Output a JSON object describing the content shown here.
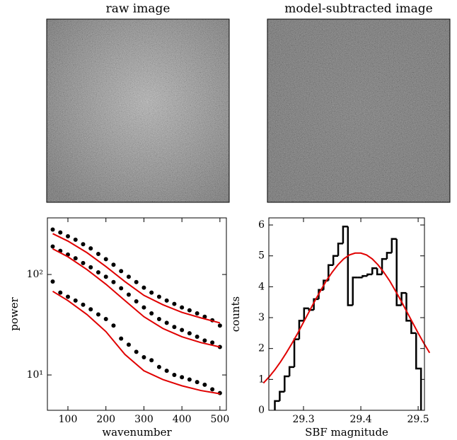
{
  "chart_data": [
    {
      "type": "image",
      "title": "raw image"
    },
    {
      "type": "image",
      "title": "model-subtracted image"
    },
    {
      "type": "scatter",
      "xlabel": "wavenumber",
      "ylabel": "power",
      "yscale": "log",
      "xlim": [
        46,
        517
      ],
      "ylim": [
        4.45,
        366
      ],
      "xticks": [
        100,
        200,
        300,
        400,
        500
      ],
      "yticks": [
        {
          "value": 10,
          "label": "10¹"
        },
        {
          "value": 100,
          "label": "10²"
        }
      ],
      "x": [
        60,
        80,
        100,
        120,
        140,
        160,
        180,
        200,
        220,
        240,
        260,
        280,
        300,
        320,
        340,
        360,
        380,
        400,
        420,
        440,
        460,
        480,
        500
      ],
      "series": [
        {
          "color": "#000000",
          "values": [
            280,
            262,
            240,
            222,
            200,
            182,
            160,
            142,
            125,
            108,
            95,
            84,
            74,
            66,
            60,
            55,
            51,
            47,
            44,
            41,
            38,
            35,
            31
          ]
        },
        {
          "color": "#000000",
          "values": [
            190,
            172,
            158,
            145,
            130,
            118,
            105,
            95,
            84,
            73,
            63,
            54,
            47,
            41,
            36,
            33,
            30,
            28,
            26,
            24,
            22,
            21,
            19
          ]
        },
        {
          "color": "#000000",
          "values": [
            85,
            66,
            60,
            55,
            50,
            45,
            40,
            36,
            31,
            23,
            20,
            17,
            15,
            14,
            12,
            11,
            10,
            9.5,
            9,
            8.5,
            8,
            7.2,
            6.6
          ]
        }
      ],
      "fits": {
        "color": "#e00000",
        "x": [
          60,
          100,
          150,
          200,
          250,
          300,
          350,
          400,
          450,
          500
        ],
        "series": [
          [
            255,
            215,
            165,
            120,
            85,
            62,
            50,
            42,
            37,
            33
          ],
          [
            180,
            150,
            112,
            80,
            55,
            38,
            29,
            24,
            21,
            19
          ],
          [
            68,
            55,
            40,
            27,
            16,
            11,
            9,
            7.8,
            7,
            6.5
          ]
        ]
      }
    },
    {
      "type": "histogram",
      "xlabel": "SBF magnitude",
      "ylabel": "counts",
      "xlim": [
        29.2395,
        29.511
      ],
      "ylim": [
        0,
        6.23
      ],
      "xticks": [
        29.3,
        29.4,
        29.5
      ],
      "yticks": [
        0,
        1,
        2,
        3,
        4,
        5,
        6
      ],
      "color": "#000000",
      "bins": [
        29.25,
        29.2585,
        29.267,
        29.2755,
        29.284,
        29.2925,
        29.301,
        29.3095,
        29.318,
        29.3265,
        29.335,
        29.3435,
        29.352,
        29.3605,
        29.369,
        29.3775,
        29.386,
        29.3945,
        29.403,
        29.4115,
        29.42,
        29.4285,
        29.437,
        29.4455,
        29.454,
        29.4625,
        29.471,
        29.4795,
        29.488,
        29.4965,
        29.505
      ],
      "counts": [
        0.3,
        0.6,
        1.1,
        1.4,
        2.3,
        2.9,
        3.3,
        3.25,
        3.6,
        3.9,
        4.2,
        4.7,
        5.0,
        5.4,
        5.95,
        3.4,
        4.3,
        4.3,
        4.35,
        4.4,
        4.6,
        4.4,
        4.9,
        5.1,
        5.55,
        3.4,
        3.8,
        2.9,
        2.5,
        1.35
      ],
      "fit": {
        "color": "#e00000",
        "x": [
          29.23,
          29.24,
          29.25,
          29.26,
          29.27,
          29.28,
          29.29,
          29.3,
          29.31,
          29.32,
          29.33,
          29.34,
          29.35,
          29.36,
          29.37,
          29.38,
          29.39,
          29.4,
          29.41,
          29.42,
          29.43,
          29.44,
          29.45,
          29.46,
          29.47,
          29.48,
          29.49,
          29.5,
          29.51,
          29.52
        ],
        "values": [
          0.88,
          1.08,
          1.31,
          1.57,
          1.86,
          2.17,
          2.5,
          2.85,
          3.2,
          3.55,
          3.88,
          4.2,
          4.47,
          4.71,
          4.9,
          5.03,
          5.09,
          5.09,
          5.03,
          4.9,
          4.71,
          4.47,
          4.2,
          3.88,
          3.55,
          3.2,
          2.85,
          2.5,
          2.17,
          1.86
        ]
      }
    }
  ]
}
